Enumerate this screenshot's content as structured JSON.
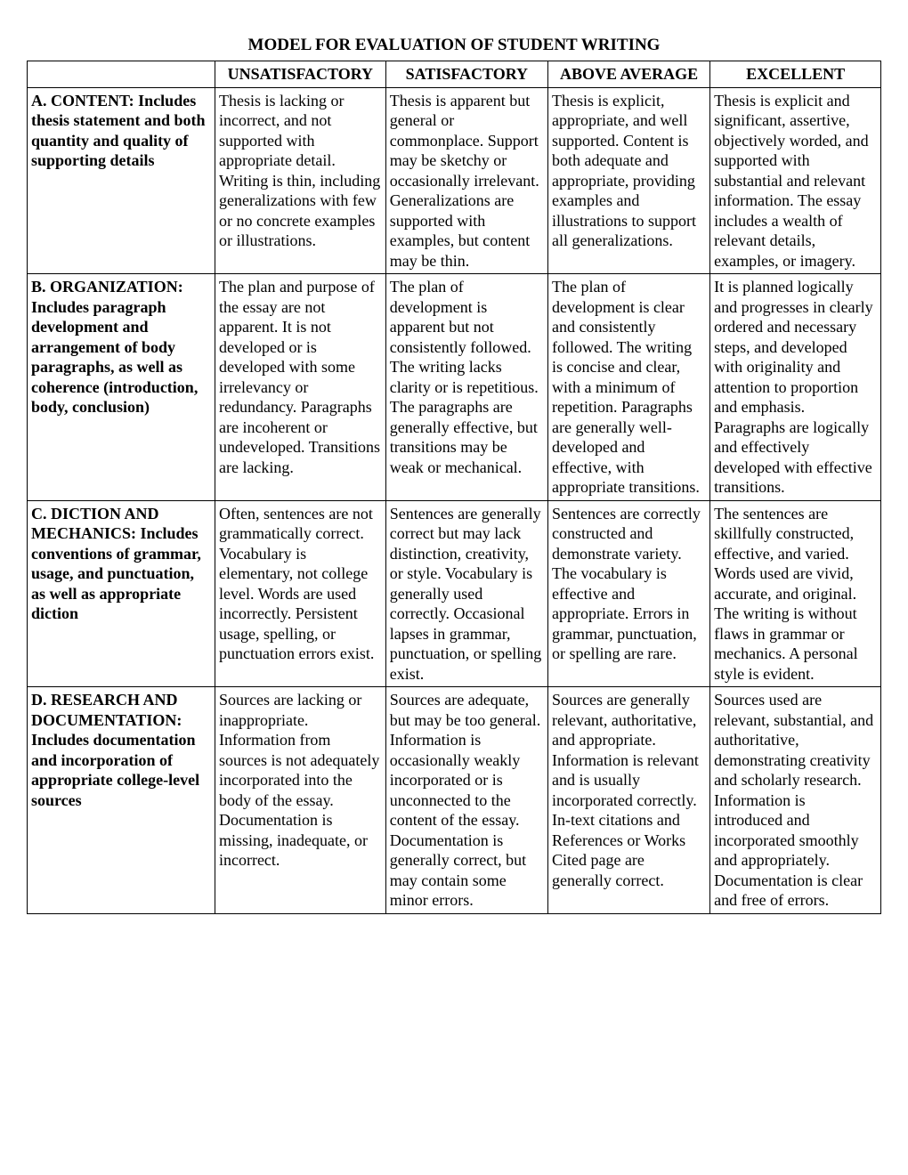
{
  "title": "MODEL FOR EVALUATION OF STUDENT WRITING",
  "headers": {
    "blank": "",
    "col1": "UNSATISFACTORY",
    "col2": "SATISFACTORY",
    "col3": "ABOVE AVERAGE",
    "col4": "EXCELLENT"
  },
  "rows": [
    {
      "criteria": "A. CONTENT: Includes thesis statement and both quantity and quality of supporting details",
      "unsatisfactory": "Thesis is lacking or incorrect, and not supported with appropriate detail. Writing is thin, including generalizations with few or no concrete examples or illustrations.",
      "satisfactory": "Thesis is apparent but general or commonplace. Support may be sketchy or occasionally irrelevant. Generalizations are supported with examples, but content may be thin.",
      "above": "Thesis is explicit, appropriate, and well supported. Content is both adequate and appropriate, providing examples and illustrations to support all generalizations.",
      "excellent": "Thesis is explicit and significant, assertive, objectively worded, and supported with substantial and relevant information. The essay includes a wealth of relevant details, examples, or imagery."
    },
    {
      "criteria": "B. ORGANIZATION: Includes paragraph development and arrangement of body paragraphs, as well as coherence (introduction, body, conclusion)",
      "unsatisfactory": "The plan and purpose of the essay are not apparent. It is not developed or is developed with some irrelevancy or redundancy. Paragraphs are incoherent or undeveloped. Transitions are lacking.",
      "satisfactory": "The plan of development is apparent but not consistently followed. The writing lacks clarity or is repetitious. The paragraphs are generally effective, but transitions may be weak or mechanical.",
      "above": "The plan of development is clear and consistently followed. The writing is concise and clear, with a minimum of repetition. Paragraphs are generally well-developed and effective, with appropriate transitions.",
      "excellent": "It is planned logically and progresses in clearly ordered and necessary steps, and developed with originality and attention to proportion and emphasis. Paragraphs are logically and effectively developed with effective transitions."
    },
    {
      "criteria": "C. DICTION AND MECHANICS: Includes conventions of grammar, usage, and punctuation, as well as appropriate diction",
      "unsatisfactory": "Often, sentences are not grammatically correct. Vocabulary is elementary, not college level. Words are used incorrectly. Persistent usage, spelling, or punctuation errors exist.",
      "satisfactory": "Sentences are generally correct but may lack distinction, creativity, or style. Vocabulary is generally used correctly. Occasional lapses in grammar, punctuation, or spelling exist.",
      "above": "Sentences are correctly constructed and demonstrate variety. The vocabulary is effective and appropriate. Errors in grammar, punctuation, or spelling are rare.",
      "excellent": "The sentences are skillfully constructed, effective, and varied. Words used are vivid, accurate, and original. The writing is without flaws in grammar or mechanics. A personal style is evident."
    },
    {
      "criteria": "D. RESEARCH AND DOCUMENTATION: Includes documentation and incorporation of appropriate college-level  sources",
      "unsatisfactory": "Sources are lacking or inappropriate. Information from sources is not adequately incorporated into the body of the essay. Documentation is missing, inadequate, or incorrect.",
      "satisfactory": "Sources are adequate, but may be too general. Information is occasionally weakly incorporated or is unconnected to the content of the essay. Documentation is generally correct, but may contain some minor errors.",
      "above": "Sources are generally relevant, authoritative, and appropriate. Information is relevant and is usually incorporated correctly. In-text citations and References or Works Cited page are generally correct.",
      "excellent": "Sources used are relevant, substantial, and authoritative, demonstrating creativity and scholarly research. Information is introduced and incorporated smoothly and appropriately. Documentation is clear and free of errors."
    }
  ]
}
